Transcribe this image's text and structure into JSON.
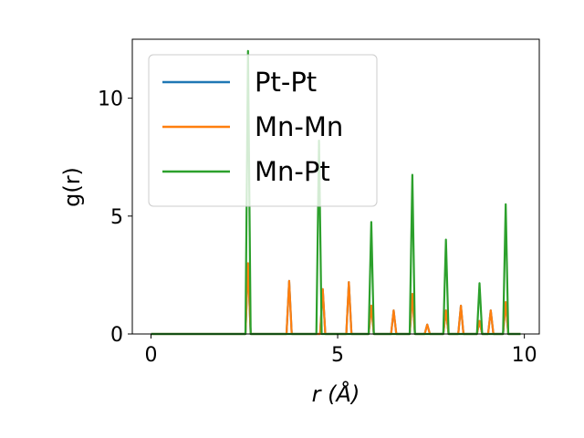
{
  "chart_data": {
    "type": "line",
    "title": "",
    "xlabel": "r (Å)",
    "ylabel": "g(r)",
    "xlim": [
      -0.5,
      10.4
    ],
    "ylim": [
      0,
      12.5
    ],
    "x_ticks": [
      0,
      5,
      10
    ],
    "x_tick_labels": [
      "0",
      "5",
      "10"
    ],
    "y_ticks": [
      0,
      5,
      10
    ],
    "y_tick_labels": [
      "0",
      "5",
      "10"
    ],
    "grid": false,
    "legend_position": "upper-left",
    "peak_half_width": 0.07,
    "x_range": [
      0,
      9.9
    ],
    "series": [
      {
        "name": "Pt-Pt",
        "color": "#1f77b4",
        "peaks": [
          [
            2.6,
            3.0
          ],
          [
            3.7,
            2.25
          ],
          [
            4.6,
            1.9
          ],
          [
            5.3,
            2.2
          ],
          [
            5.9,
            1.2
          ],
          [
            6.5,
            1.0
          ],
          [
            7.0,
            1.7
          ],
          [
            7.4,
            0.4
          ],
          [
            7.9,
            1.0
          ],
          [
            8.3,
            1.2
          ],
          [
            8.8,
            0.55
          ],
          [
            9.1,
            1.0
          ],
          [
            9.5,
            1.35
          ]
        ]
      },
      {
        "name": "Mn-Mn",
        "color": "#ff7f0e",
        "peaks": [
          [
            2.6,
            3.0
          ],
          [
            3.7,
            2.25
          ],
          [
            4.6,
            1.9
          ],
          [
            5.3,
            2.2
          ],
          [
            5.9,
            1.2
          ],
          [
            6.5,
            1.0
          ],
          [
            7.0,
            1.7
          ],
          [
            7.4,
            0.4
          ],
          [
            7.9,
            1.0
          ],
          [
            8.3,
            1.2
          ],
          [
            8.8,
            0.55
          ],
          [
            9.1,
            1.0
          ],
          [
            9.5,
            1.35
          ]
        ]
      },
      {
        "name": "Mn-Pt",
        "color": "#2ca02c",
        "peaks": [
          [
            2.6,
            12.0
          ],
          [
            4.5,
            8.2
          ],
          [
            5.9,
            4.75
          ],
          [
            7.0,
            6.75
          ],
          [
            7.9,
            4.0
          ],
          [
            8.8,
            2.15
          ],
          [
            9.5,
            5.5
          ]
        ]
      }
    ]
  }
}
